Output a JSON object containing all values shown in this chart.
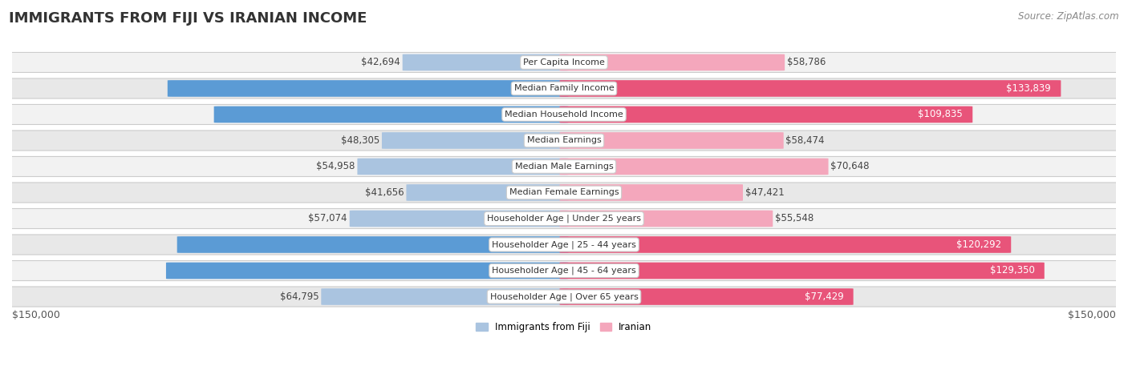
{
  "title": "IMMIGRANTS FROM FIJI VS IRANIAN INCOME",
  "source": "Source: ZipAtlas.com",
  "categories": [
    "Per Capita Income",
    "Median Family Income",
    "Median Household Income",
    "Median Earnings",
    "Median Male Earnings",
    "Median Female Earnings",
    "Householder Age | Under 25 years",
    "Householder Age | 25 - 44 years",
    "Householder Age | 45 - 64 years",
    "Householder Age | Over 65 years"
  ],
  "fiji_values": [
    42694,
    106544,
    93933,
    48305,
    54958,
    41656,
    57074,
    103954,
    106952,
    64795
  ],
  "iranian_values": [
    58786,
    133839,
    109835,
    58474,
    70648,
    47421,
    55548,
    120292,
    129350,
    77429
  ],
  "fiji_color_light": "#aac4e0",
  "fiji_color_dark": "#5b9bd5",
  "iranian_color_light": "#f4a7bc",
  "iranian_color_dark": "#e8547a",
  "background_color": "#ffffff",
  "row_bg_even": "#f2f2f2",
  "row_bg_odd": "#e8e8e8",
  "row_border_color": "#cccccc",
  "label_box_color": "#ffffff",
  "label_box_border": "#cccccc",
  "max_value": 150000,
  "x_tick_label": "$150,000",
  "fiji_dark_threshold": 75000,
  "iranian_dark_threshold": 75000,
  "title_fontsize": 13,
  "source_fontsize": 8.5,
  "bar_label_fontsize": 8.5,
  "category_fontsize": 8,
  "legend_fontsize": 8.5,
  "axis_label_fontsize": 9
}
